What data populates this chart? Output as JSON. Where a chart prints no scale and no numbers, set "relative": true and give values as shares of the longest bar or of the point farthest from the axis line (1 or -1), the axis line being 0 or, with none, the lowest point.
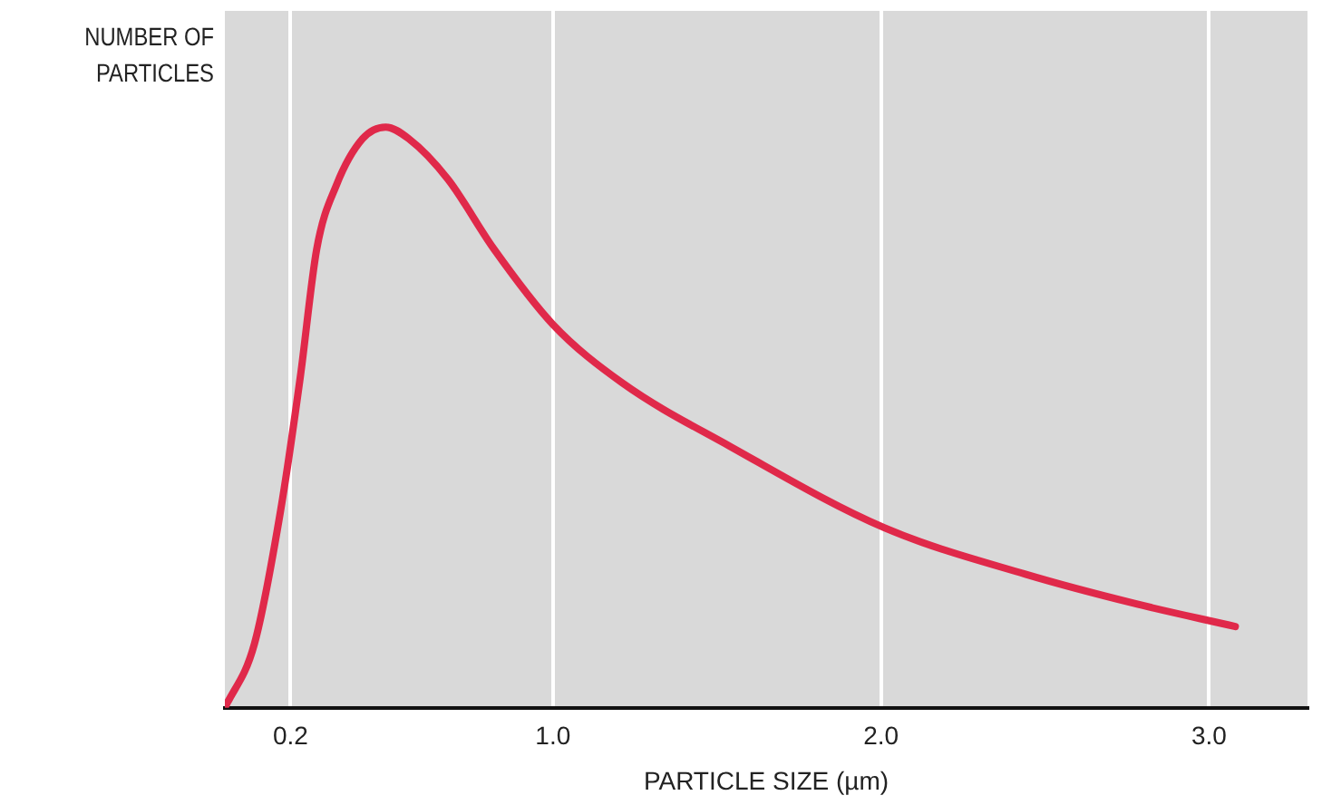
{
  "chart_data": {
    "type": "line",
    "relative": true,
    "xlabel": "PARTICLE SIZE (µm)",
    "ylabel": "NUMBER OF PARTICLES",
    "x": [
      0,
      0.09,
      0.17,
      0.23,
      0.28,
      0.34,
      0.42,
      0.49,
      0.56,
      0.68,
      0.82,
      1.0,
      1.21,
      1.54,
      2.01,
      2.44,
      2.77,
      3.08
    ],
    "series": [
      {
        "color": "#e0294a",
        "values": [
          0,
          0.11,
          0.34,
          0.57,
          0.79,
          0.9,
          0.98,
          1,
          0.98,
          0.91,
          0.79,
          0.66,
          0.56,
          0.45,
          0.31,
          0.23,
          0.18,
          0.14
        ]
      }
    ],
    "xlim": [
      0,
      3.3
    ],
    "xticks": [
      0.2,
      {
        "value": 1,
        "label": "1.0"
      },
      {
        "value": 2,
        "label": "2.0"
      },
      {
        "value": 3,
        "label": "3.0"
      }
    ],
    "grid": "x",
    "legend": false,
    "marker": "none",
    "line_style": "solid"
  }
}
